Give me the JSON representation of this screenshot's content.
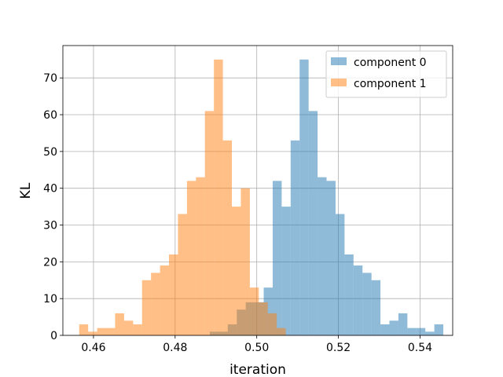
{
  "chart_data": {
    "type": "bar",
    "subtype": "overlaid-histogram",
    "xlabel": "iteration",
    "ylabel": "KL",
    "xlim": [
      0.4525,
      0.548
    ],
    "ylim": [
      0,
      78.8
    ],
    "xticks": [
      0.46,
      0.48,
      0.5,
      0.52,
      0.54
    ],
    "xtick_labels": [
      "0.46",
      "0.48",
      "0.50",
      "0.52",
      "0.54"
    ],
    "yticks": [
      0,
      10,
      20,
      30,
      40,
      50,
      60,
      70
    ],
    "ytick_labels": [
      "0",
      "10",
      "20",
      "30",
      "40",
      "50",
      "60",
      "70"
    ],
    "grid": true,
    "legend_position": "top-right",
    "series": [
      {
        "name": "component 0",
        "color": "#1f77b4",
        "alpha": 0.5,
        "bin_start": 0.4885,
        "bin_width": 0.0022,
        "counts": [
          1,
          1,
          3,
          7,
          9,
          9,
          13,
          42,
          35,
          53,
          75,
          61,
          43,
          42,
          33,
          22,
          19,
          17,
          15,
          3,
          4,
          6,
          2,
          2,
          1,
          3
        ]
      },
      {
        "name": "component 1",
        "color": "#ff7f0e",
        "alpha": 0.5,
        "bin_start": 0.4565,
        "bin_width": 0.0022,
        "counts": [
          3,
          1,
          2,
          2,
          6,
          4,
          3,
          15,
          17,
          19,
          22,
          33,
          42,
          43,
          61,
          75,
          53,
          35,
          40,
          13,
          9,
          6,
          2
        ]
      }
    ]
  }
}
